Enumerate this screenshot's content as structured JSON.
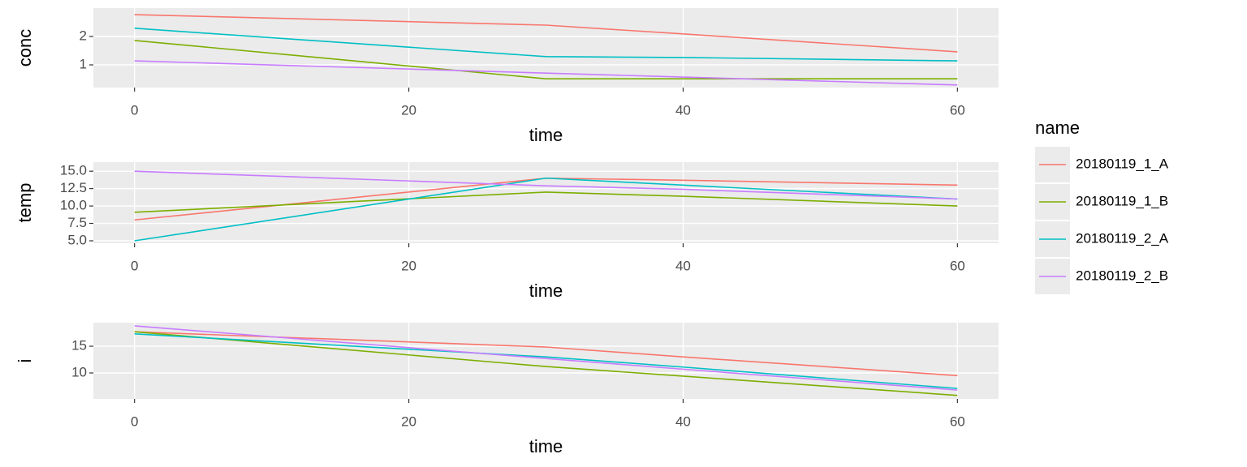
{
  "chart_data": [
    {
      "type": "line",
      "xlabel": "time",
      "ylabel": "conc",
      "legend_title": "name",
      "legend_position": "right",
      "grid": true,
      "x": [
        0,
        30,
        40,
        60
      ],
      "xlim": [
        -3,
        63
      ],
      "xticks": [
        0,
        20,
        40,
        60
      ],
      "ylim": [
        0.2,
        3.0
      ],
      "yticks": [
        1,
        2
      ],
      "series": [
        {
          "name": "20180119_1_A",
          "color": "#F8766D",
          "values": [
            2.77,
            2.4,
            2.09,
            1.46
          ]
        },
        {
          "name": "20180119_1_B",
          "color": "#7CAE00",
          "values": [
            1.86,
            0.51,
            0.51,
            0.51
          ]
        },
        {
          "name": "20180119_2_A",
          "color": "#00BFC4",
          "values": [
            2.29,
            1.29,
            1.26,
            1.14
          ]
        },
        {
          "name": "20180119_2_B",
          "color": "#C77CFF",
          "values": [
            1.14,
            0.71,
            0.57,
            0.29
          ]
        }
      ]
    },
    {
      "type": "line",
      "xlabel": "time",
      "ylabel": "temp",
      "grid": true,
      "x": [
        0,
        30,
        40,
        60
      ],
      "xlim": [
        -3,
        63
      ],
      "xticks": [
        0,
        20,
        40,
        60
      ],
      "ylim": [
        4.65,
        16.3
      ],
      "yticks": [
        {
          "value": 5,
          "label": "5.0"
        },
        {
          "value": 7.5,
          "label": "7.5"
        },
        {
          "value": 10,
          "label": "10.0"
        },
        {
          "value": 12.5,
          "label": "12.5"
        },
        {
          "value": 15,
          "label": "15.0"
        }
      ],
      "series": [
        {
          "color": "#F8766D",
          "values": [
            8.0,
            14.0,
            13.7,
            13.0
          ]
        },
        {
          "color": "#7CAE00",
          "values": [
            9.1,
            12.0,
            11.4,
            10.0
          ]
        },
        {
          "color": "#00BFC4",
          "values": [
            5.0,
            14.0,
            13.0,
            11.0
          ]
        },
        {
          "color": "#C77CFF",
          "values": [
            15.0,
            12.9,
            12.4,
            11.0
          ]
        }
      ]
    },
    {
      "type": "line",
      "xlabel": "time",
      "ylabel": "i",
      "grid": true,
      "x": [
        0,
        30,
        40,
        60
      ],
      "xlim": [
        -3,
        63
      ],
      "xticks": [
        0,
        20,
        40,
        60
      ],
      "ylim": [
        5.15,
        19.4
      ],
      "yticks": [
        10,
        15
      ],
      "series": [
        {
          "color": "#F8766D",
          "values": [
            17.7,
            14.85,
            13.0,
            9.5
          ]
        },
        {
          "color": "#7CAE00",
          "values": [
            17.7,
            11.2,
            9.4,
            5.8
          ]
        },
        {
          "color": "#00BFC4",
          "values": [
            17.3,
            13.0,
            11.1,
            7.1
          ]
        },
        {
          "color": "#C77CFF",
          "values": [
            18.8,
            12.7,
            10.7,
            6.8
          ]
        }
      ]
    }
  ]
}
